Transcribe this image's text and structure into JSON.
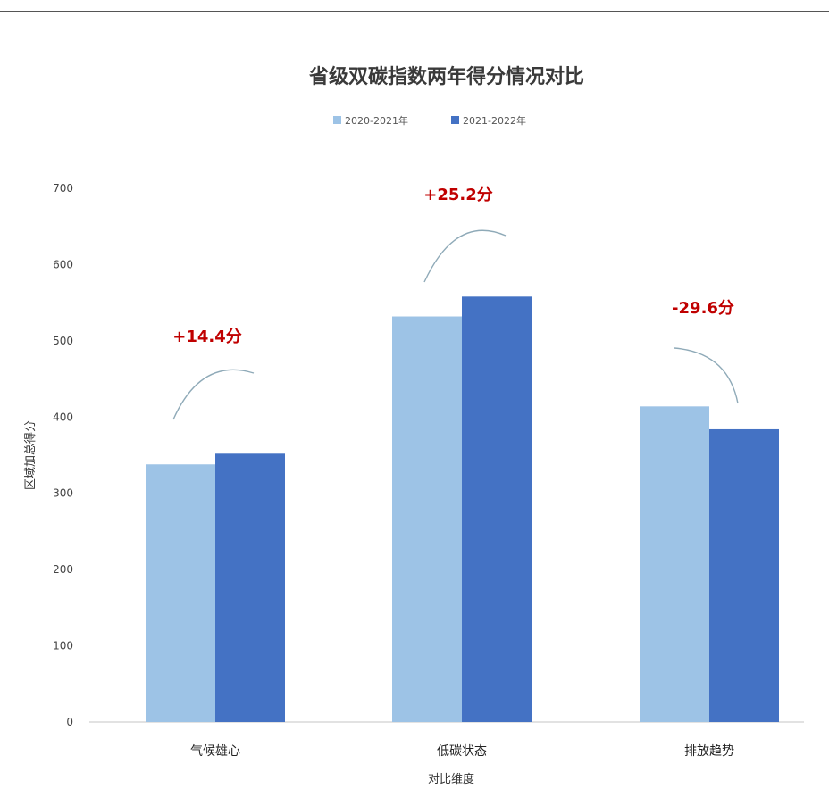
{
  "chart_data": {
    "type": "bar",
    "title": "省级双碳指数两年得分情况对比",
    "xlabel": "对比维度",
    "ylabel": "区域加总得分",
    "categories": [
      "气候雄心",
      "低碳状态",
      "排放趋势"
    ],
    "series": [
      {
        "name": "2020-2021年",
        "values": [
          338,
          532,
          414
        ],
        "color": "#9dc3e6"
      },
      {
        "name": "2021-2022年",
        "values": [
          352,
          558,
          384
        ],
        "color": "#4472c4"
      }
    ],
    "ylim": [
      0,
      700
    ],
    "yticks": [
      0,
      100,
      200,
      300,
      400,
      500,
      600,
      700
    ],
    "legend": "top",
    "grid": false,
    "annotations": [
      {
        "category": "气候雄心",
        "text": "+14.4分",
        "color": "#c00000"
      },
      {
        "category": "低碳状态",
        "text": "+25.2分",
        "color": "#c00000"
      },
      {
        "category": "排放趋势",
        "text": "-29.6分",
        "color": "#c00000"
      }
    ],
    "axis_color": "#d9d9d9",
    "arc_color": "#8faab8"
  }
}
